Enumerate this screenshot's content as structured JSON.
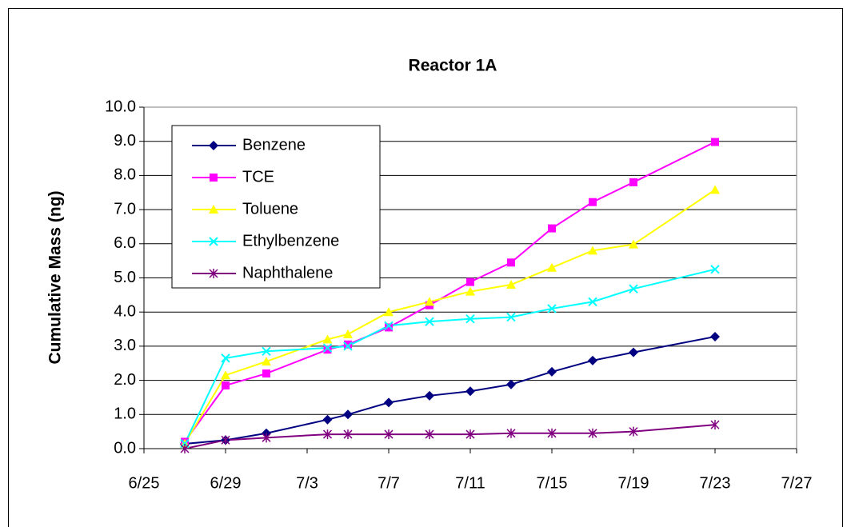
{
  "chart_data": {
    "type": "line",
    "title": "Reactor 1A",
    "y_label": "Cumulative Mass (ng)",
    "x": [
      "6/27",
      "6/29",
      "7/1",
      "7/4",
      "7/5",
      "7/7",
      "7/9",
      "7/11",
      "7/13",
      "7/15",
      "7/17",
      "7/19",
      "7/23"
    ],
    "series": [
      {
        "name": "Benzene",
        "color": "#000080",
        "marker": "diamond",
        "values": [
          0.14,
          0.25,
          0.45,
          0.85,
          1.0,
          1.35,
          1.55,
          1.68,
          1.88,
          2.25,
          2.58,
          2.82,
          3.28
        ]
      },
      {
        "name": "TCE",
        "color": "#ff00ff",
        "marker": "square",
        "values": [
          0.2,
          1.85,
          2.2,
          2.9,
          3.05,
          3.55,
          4.2,
          4.88,
          5.45,
          6.45,
          7.22,
          7.8,
          8.98
        ]
      },
      {
        "name": "Toluene",
        "color": "#ffff00",
        "marker": "triangle",
        "values": [
          0.15,
          2.15,
          2.55,
          3.2,
          3.35,
          4.0,
          4.3,
          4.6,
          4.8,
          5.3,
          5.8,
          5.98,
          7.58
        ]
      },
      {
        "name": "Ethylbenzene",
        "color": "#00ffff",
        "marker": "x",
        "values": [
          0.15,
          2.65,
          2.85,
          2.95,
          3.0,
          3.6,
          3.72,
          3.8,
          3.85,
          4.1,
          4.3,
          4.68,
          5.25
        ]
      },
      {
        "name": "Naphthalene",
        "color": "#800080",
        "marker": "star",
        "values": [
          0.0,
          0.25,
          0.32,
          0.42,
          0.42,
          0.42,
          0.42,
          0.42,
          0.45,
          0.45,
          0.45,
          0.5,
          0.7
        ]
      }
    ],
    "xlim": [
      "6/25",
      "7/27"
    ],
    "xticks": [
      "6/25",
      "6/29",
      "7/3",
      "7/7",
      "7/11",
      "7/15",
      "7/19",
      "7/23",
      "7/27"
    ],
    "ylim": [
      0,
      10
    ],
    "yticks": [
      {
        "value": 0,
        "label": "0.0"
      },
      {
        "value": 1,
        "label": "1.0"
      },
      {
        "value": 2,
        "label": "2.0"
      },
      {
        "value": 3,
        "label": "3.0"
      },
      {
        "value": 4,
        "label": "4.0"
      },
      {
        "value": 5,
        "label": "5.0"
      },
      {
        "value": 6,
        "label": "6.0"
      },
      {
        "value": 7,
        "label": "7.0"
      },
      {
        "value": 8,
        "label": "8.0"
      },
      {
        "value": 9,
        "label": "9.0"
      },
      {
        "value": 10,
        "label": "10.0"
      }
    ],
    "grid": true,
    "legend": "upper left"
  }
}
